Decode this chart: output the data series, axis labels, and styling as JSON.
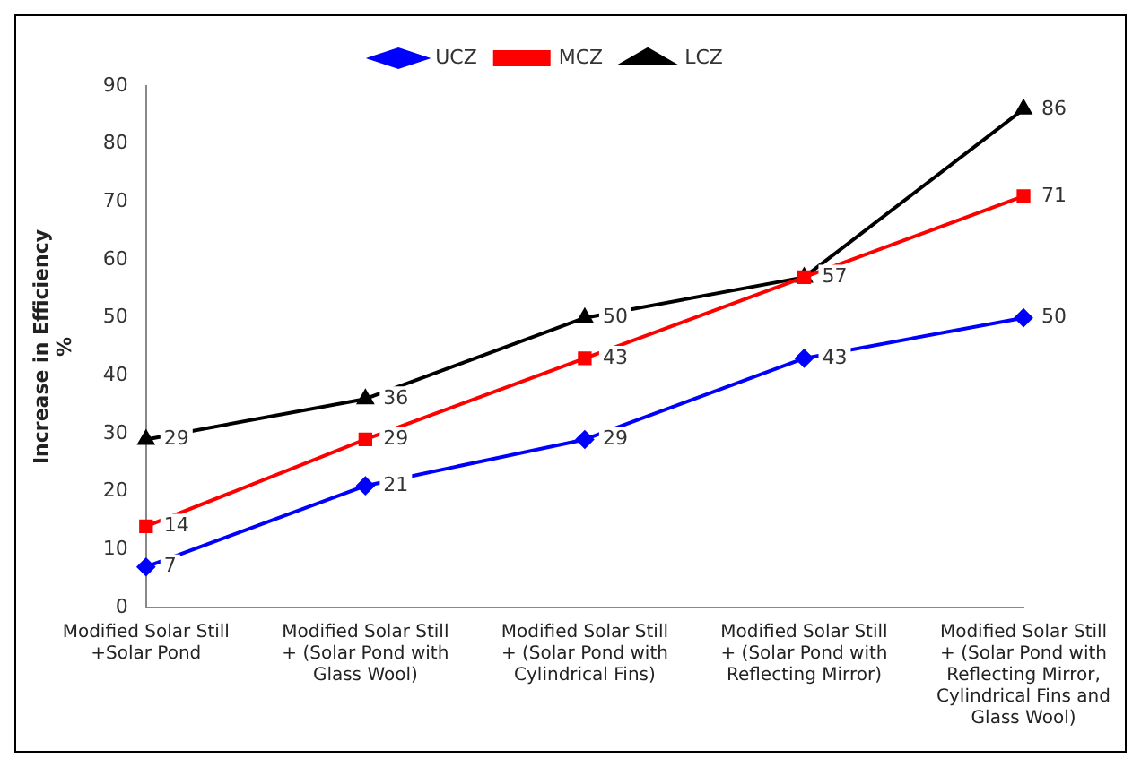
{
  "chart_data": {
    "type": "line",
    "ylabel": "Increase in Efficiency %",
    "categories": [
      "Modified Solar Still +Solar Pond",
      "Modified Solar Still + (Solar Pond with Glass Wool)",
      "Modified Solar Still + (Solar Pond with Cylindrical Fins)",
      "Modified Solar Still + (Solar Pond with Reflecting Mirror)",
      "Modified Solar Still + (Solar Pond with Reflecting Mirror, Cylindrical Fins and Glass Wool)"
    ],
    "series": [
      {
        "name": "UCZ",
        "color": "#0000ff",
        "marker": "diamond",
        "values": [
          7,
          21,
          29,
          43,
          50
        ],
        "value_labels": [
          "7",
          "21",
          "29",
          "43",
          "50"
        ]
      },
      {
        "name": "MCZ",
        "color": "#ff0000",
        "marker": "square",
        "values": [
          14,
          29,
          43,
          57,
          71
        ],
        "value_labels": [
          "14",
          "29",
          "43",
          null,
          "71"
        ]
      },
      {
        "name": "LCZ",
        "color": "#000000",
        "marker": "triangle",
        "values": [
          29,
          36,
          50,
          57,
          86
        ],
        "value_labels": [
          "29",
          "36",
          "50",
          "57",
          "86"
        ]
      }
    ],
    "ylim": [
      0,
      90
    ],
    "yticks": [
      0,
      10,
      20,
      30,
      40,
      50,
      60,
      70,
      80,
      90
    ],
    "grid": false,
    "legend": "top",
    "line_style": "solid"
  }
}
